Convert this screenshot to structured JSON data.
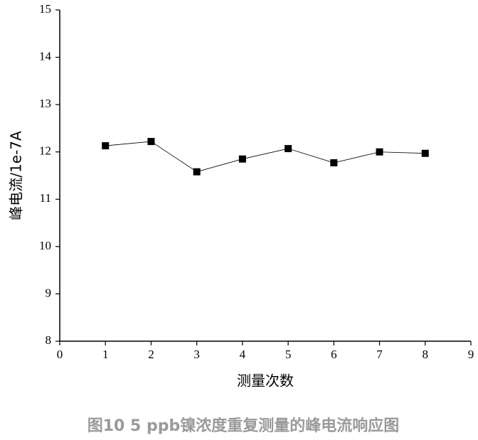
{
  "chart_data": {
    "type": "line",
    "caption": "图10 5 ppb镍浓度重复测量的峰电流响应图",
    "x_label": "测量次数",
    "y_label": "峰电流/1e-7A",
    "x": [
      1,
      2,
      3,
      4,
      5,
      6,
      7,
      8
    ],
    "series": [
      {
        "color": "#000000",
        "values": [
          12.13,
          12.22,
          11.58,
          11.85,
          12.07,
          11.77,
          12.0,
          11.97
        ]
      }
    ],
    "xlim": [
      0,
      9
    ],
    "xticks": [
      0,
      1,
      2,
      3,
      4,
      5,
      6,
      7,
      8,
      9
    ],
    "ylim": [
      8,
      15
    ],
    "yticks": [
      8,
      9,
      10,
      11,
      12,
      13,
      14,
      15
    ],
    "grid": false
  }
}
